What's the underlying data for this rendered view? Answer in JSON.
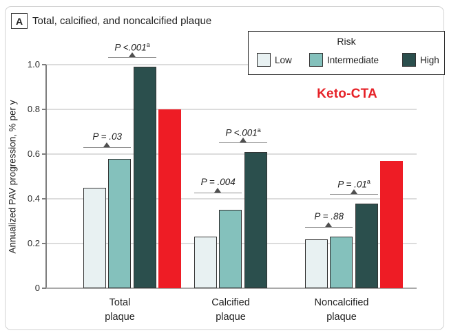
{
  "header": {
    "panel_label": "A",
    "title": "Total, calcified, and noncalcified plaque"
  },
  "overlay": {
    "label": "Keto-CTA",
    "color": "#e62228"
  },
  "chart_data": {
    "type": "bar",
    "title": "Total, calcified, and noncalcified plaque",
    "ylabel": "Annualized PAV progression, % per y",
    "xlabel": "",
    "ylim": [
      0,
      1.0
    ],
    "yticks": [
      "0",
      "0.2",
      "0.4",
      "0.6",
      "0.8",
      "1.0"
    ],
    "grid": true,
    "legend": {
      "title": "Risk",
      "position": "top-right"
    },
    "categories": [
      "Total\nplaque",
      "Calcified\nplaque",
      "Noncalcified\nplaque"
    ],
    "series": [
      {
        "name": "Low",
        "color": "#e8f1f2",
        "values": [
          0.45,
          0.23,
          0.22
        ]
      },
      {
        "name": "Intermediate",
        "color": "#84c1bc",
        "values": [
          0.58,
          0.35,
          0.23
        ]
      },
      {
        "name": "High",
        "color": "#2b4f4d",
        "values": [
          0.99,
          0.61,
          0.38
        ]
      }
    ],
    "overlay_series": {
      "name": "Keto-CTA",
      "color": "#ee1c25",
      "values": [
        0.8,
        null,
        0.57
      ]
    },
    "annotations": [
      {
        "label": "P = .03",
        "sup": "",
        "group": 0,
        "from": 0,
        "to": 1
      },
      {
        "label": "P <.001",
        "sup": "a",
        "group": 0,
        "from": 1,
        "to": 2
      },
      {
        "label": "P = .004",
        "sup": "",
        "group": 1,
        "from": 0,
        "to": 1
      },
      {
        "label": "P <.001",
        "sup": "a",
        "group": 1,
        "from": 1,
        "to": 2
      },
      {
        "label": "P = .88",
        "sup": "",
        "group": 2,
        "from": 0,
        "to": 1
      },
      {
        "label": "P = .01",
        "sup": "a",
        "group": 2,
        "from": 1,
        "to": 2
      }
    ]
  }
}
